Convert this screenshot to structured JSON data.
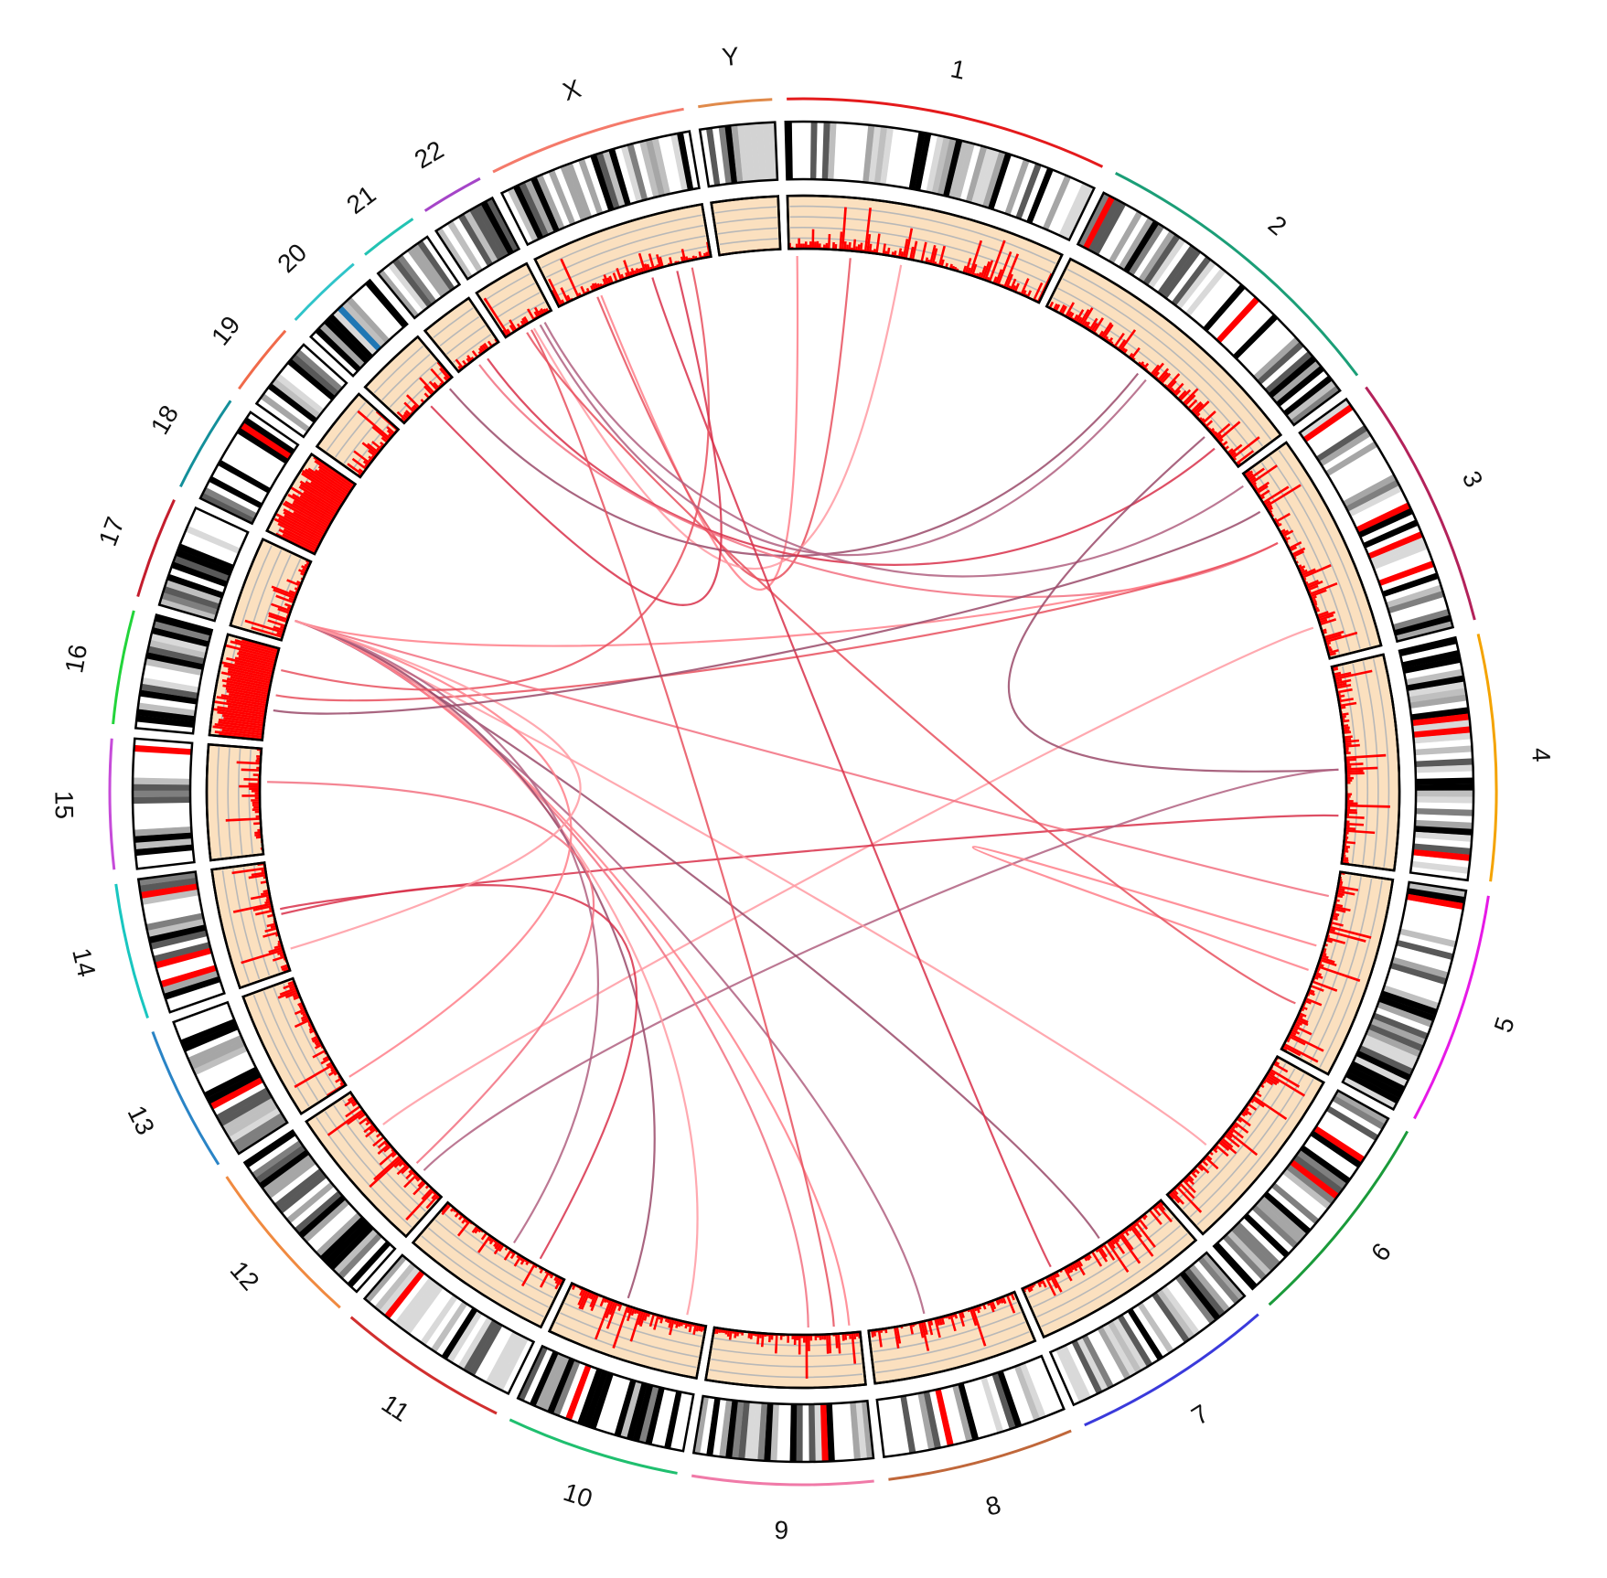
{
  "chart_data": {
    "type": "circos",
    "title": "",
    "chromosomes": [
      {
        "name": "1",
        "size": 249,
        "color": "#e41a1c"
      },
      {
        "name": "2",
        "size": 243,
        "color": "#1b9e77"
      },
      {
        "name": "3",
        "size": 198,
        "color": "#b3225a"
      },
      {
        "name": "4",
        "size": 191,
        "color": "#f4a300"
      },
      {
        "name": "5",
        "size": 181,
        "color": "#e619e6"
      },
      {
        "name": "6",
        "size": 171,
        "color": "#1a9a3a"
      },
      {
        "name": "7",
        "size": 159,
        "color": "#3a3adb"
      },
      {
        "name": "8",
        "size": 146,
        "color": "#c0673a"
      },
      {
        "name": "9",
        "size": 141,
        "color": "#f07aa8"
      },
      {
        "name": "10",
        "size": 136,
        "color": "#1fbf6f"
      },
      {
        "name": "11",
        "size": 135,
        "color": "#d12f2f"
      },
      {
        "name": "12",
        "size": 134,
        "color": "#f08a40"
      },
      {
        "name": "13",
        "size": 115,
        "color": "#2a84c6"
      },
      {
        "name": "14",
        "size": 107,
        "color": "#19c6c0"
      },
      {
        "name": "15",
        "size": 102,
        "color": "#c64bd9"
      },
      {
        "name": "16",
        "size": 90,
        "color": "#22d43a"
      },
      {
        "name": "17",
        "size": 81,
        "color": "#c41d2d"
      },
      {
        "name": "18",
        "size": 78,
        "color": "#138f9a"
      },
      {
        "name": "19",
        "size": 59,
        "color": "#f06a4a"
      },
      {
        "name": "20",
        "size": 64,
        "color": "#2fc4c9"
      },
      {
        "name": "21",
        "size": 48,
        "color": "#23c3b3"
      },
      {
        "name": "22",
        "size": 51,
        "color": "#a545c8"
      },
      {
        "name": "X",
        "size": 155,
        "color": "#f47a6a"
      },
      {
        "name": "Y",
        "size": 59,
        "color": "#e08a4a"
      }
    ],
    "links": [
      {
        "from": [
          "1",
          8
        ],
        "to": [
          "X",
          42
        ]
      },
      {
        "from": [
          "1",
          60
        ],
        "to": [
          "X",
          38
        ]
      },
      {
        "from": [
          "1",
          110
        ],
        "to": [
          "22",
          28
        ]
      },
      {
        "from": [
          "2",
          110
        ],
        "to": [
          "20",
          55
        ]
      },
      {
        "from": [
          "2",
          215
        ],
        "to": [
          "21",
          30
        ]
      },
      {
        "from": [
          "3",
          10
        ],
        "to": [
          "22",
          40
        ]
      },
      {
        "from": [
          "3",
          75
        ],
        "to": [
          "21",
          20
        ]
      },
      {
        "from": [
          "3",
          75
        ],
        "to": [
          "17",
          22
        ]
      },
      {
        "from": [
          "3",
          75
        ],
        "to": [
          "16",
          45
        ]
      },
      {
        "from": [
          "3",
          165
        ],
        "to": [
          "12",
          90
        ]
      },
      {
        "from": [
          "4",
          100
        ],
        "to": [
          "2",
          200
        ]
      },
      {
        "from": [
          "4",
          145
        ],
        "to": [
          "14",
          60
        ]
      },
      {
        "from": [
          "4",
          100
        ],
        "to": [
          "12",
          30
        ]
      },
      {
        "from": [
          "5",
          25
        ],
        "to": [
          "17",
          22
        ]
      },
      {
        "from": [
          "5",
          75
        ],
        "to": [
          "5",
          100
        ]
      },
      {
        "from": [
          "5",
          135
        ],
        "to": [
          "22",
          20
        ]
      },
      {
        "from": [
          "6",
          110
        ],
        "to": [
          "17",
          22
        ]
      },
      {
        "from": [
          "7",
          70
        ],
        "to": [
          "17",
          22
        ]
      },
      {
        "from": [
          "7",
          125
        ],
        "to": [
          "X",
          95
        ]
      },
      {
        "from": [
          "8",
          90
        ],
        "to": [
          "17",
          22
        ]
      },
      {
        "from": [
          "9",
          50
        ],
        "to": [
          "17",
          22
        ]
      },
      {
        "from": [
          "9",
          10
        ],
        "to": [
          "17",
          22
        ]
      },
      {
        "from": [
          "9",
          25
        ],
        "to": [
          "22",
          25
        ]
      },
      {
        "from": [
          "10",
          20
        ],
        "to": [
          "17",
          22
        ]
      },
      {
        "from": [
          "10",
          80
        ],
        "to": [
          "17",
          22
        ]
      },
      {
        "from": [
          "11",
          30
        ],
        "to": [
          "14",
          55
        ]
      },
      {
        "from": [
          "11",
          60
        ],
        "to": [
          "17",
          22
        ]
      },
      {
        "from": [
          "12",
          40
        ],
        "to": [
          "15",
          70
        ]
      },
      {
        "from": [
          "13",
          5
        ],
        "to": [
          "17",
          22
        ]
      },
      {
        "from": [
          "16",
          70
        ],
        "to": [
          "X",
          135
        ]
      },
      {
        "from": [
          "14",
          20
        ],
        "to": [
          "17",
          22
        ]
      },
      {
        "from": [
          "16",
          30
        ],
        "to": [
          "3",
          40
        ]
      },
      {
        "from": [
          "20",
          30
        ],
        "to": [
          "X",
          120
        ]
      },
      {
        "from": [
          "2",
          120
        ],
        "to": [
          "22",
          35
        ]
      }
    ],
    "ideogram_style": "cytoband stripes (black/grey/white) with red and blue highlighted bands",
    "histogram_track": "red bars on peach background with 4 grey grid circles",
    "grid": true,
    "legend": "none"
  }
}
